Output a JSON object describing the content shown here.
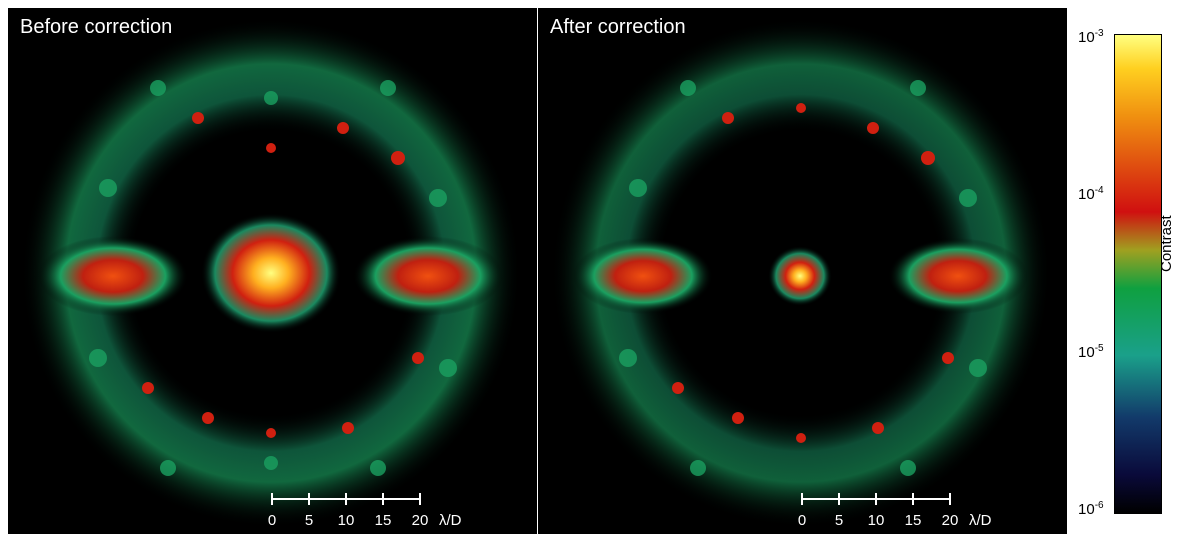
{
  "panels": [
    {
      "title": "Before correction"
    },
    {
      "title": "After correction"
    }
  ],
  "scalebar": {
    "labels": [
      "0",
      "5",
      "10",
      "15",
      "20"
    ],
    "unit": "λ/D"
  },
  "colorbar": {
    "label": "Contrast",
    "ticks": [
      {
        "base": "10",
        "exp": "-3"
      },
      {
        "base": "10",
        "exp": "-4"
      },
      {
        "base": "10",
        "exp": "-5"
      },
      {
        "base": "10",
        "exp": "-6"
      }
    ],
    "colors": [
      "#000000",
      "#123a6a",
      "#1aa08a",
      "#0fa040",
      "#d01010",
      "#f09010",
      "#ffff80"
    ]
  }
}
